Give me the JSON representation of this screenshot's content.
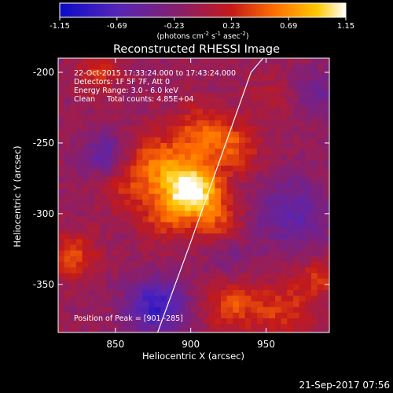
{
  "chart_data": {
    "type": "heatmap",
    "title": "Reconstructed RHESSI Image",
    "xlabel": "Heliocentric X (arcsec)",
    "ylabel": "Heliocentric Y (arcsec)",
    "xlim": [
      812,
      992
    ],
    "ylim": [
      -384,
      -190
    ],
    "x_ticks": [
      850,
      900,
      950
    ],
    "x_tick_labels": [
      "850",
      "900",
      "950"
    ],
    "y_ticks": [
      -200,
      -250,
      -300,
      -350
    ],
    "y_tick_labels": [
      "-200",
      "-250",
      "-300",
      "-350"
    ],
    "colorbar": {
      "range": [
        -1.15,
        1.15
      ],
      "ticks": [
        -1.15,
        -0.69,
        -0.23,
        0.23,
        0.69,
        1.15
      ],
      "tick_labels": [
        "-1.15",
        "-0.69",
        "-0.23",
        "0.23",
        "0.69",
        "1.15"
      ],
      "unit_label_parts": [
        "(photons cm",
        "-2",
        " s",
        "-1",
        " asec",
        "-2",
        ")"
      ]
    },
    "annotations": [
      "22-Oct-2015 17:33:24.000 to 17:43:24.000",
      "Detectors: 1F 5F 7F, Att 0",
      "Energy Range: 3.0 - 6.0 keV",
      "Clean     Total counts: 4.85E+04"
    ],
    "peak_label": "Position of Peak = [901,-285]",
    "peak_position": [
      901,
      -285
    ],
    "peak_value": 1.15,
    "sources": [
      {
        "x": 901,
        "y": -283,
        "amplitude": 1.25,
        "sigma": 13
      },
      {
        "x": 878,
        "y": -265,
        "amplitude": 0.62,
        "sigma": 16
      },
      {
        "x": 908,
        "y": -242,
        "amplitude": 0.55,
        "sigma": 13
      },
      {
        "x": 930,
        "y": -255,
        "amplitude": 0.48,
        "sigma": 12
      },
      {
        "x": 882,
        "y": -303,
        "amplitude": 0.42,
        "sigma": 12
      },
      {
        "x": 918,
        "y": -306,
        "amplitude": 0.45,
        "sigma": 12
      },
      {
        "x": 855,
        "y": -282,
        "amplitude": 0.28,
        "sigma": 12
      },
      {
        "x": 822,
        "y": -330,
        "amplitude": 0.52,
        "sigma": 11
      },
      {
        "x": 838,
        "y": -200,
        "amplitude": 0.4,
        "sigma": 10
      },
      {
        "x": 928,
        "y": -365,
        "amplitude": 0.5,
        "sigma": 13
      },
      {
        "x": 962,
        "y": -368,
        "amplitude": 0.45,
        "sigma": 14
      },
      {
        "x": 985,
        "y": -345,
        "amplitude": 0.38,
        "sigma": 10
      },
      {
        "x": 952,
        "y": -218,
        "amplitude": 0.2,
        "sigma": 12
      },
      {
        "x": 877,
        "y": -365,
        "amplitude": -0.75,
        "sigma": 14
      },
      {
        "x": 844,
        "y": -258,
        "amplitude": -0.48,
        "sigma": 11
      },
      {
        "x": 968,
        "y": -300,
        "amplitude": -0.48,
        "sigma": 18
      },
      {
        "x": 985,
        "y": -215,
        "amplitude": -0.35,
        "sigma": 12
      },
      {
        "x": 925,
        "y": -330,
        "amplitude": -0.25,
        "sigma": 10
      }
    ],
    "background_level": -0.1,
    "limb_curve": {
      "x": [
        878,
        900,
        920,
        940,
        948
      ],
      "y": [
        -384,
        -320,
        -260,
        -200,
        -190
      ]
    },
    "limb_color": "#ffffff",
    "grid": false
  },
  "timestamp": "21-Sep-2017 07:56",
  "colors": {
    "background": "#000000",
    "text": "#ffffff",
    "colormap": [
      "#0b0bc8",
      "#5525b8",
      "#8a1f6a",
      "#c41a1a",
      "#ff6e00",
      "#ffc800",
      "#ffffff"
    ]
  }
}
